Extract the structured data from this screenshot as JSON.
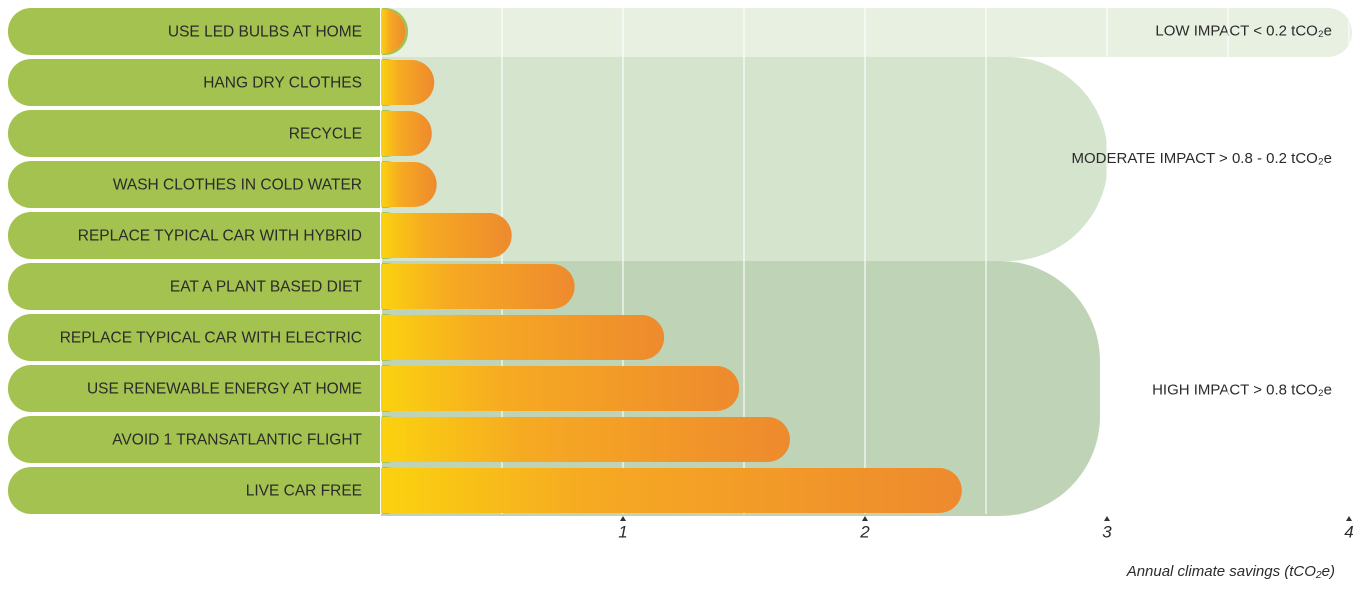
{
  "chart_data": {
    "type": "bar",
    "orientation": "horizontal",
    "categories": [
      "USE LED BULBS AT HOME",
      "HANG DRY CLOTHES",
      "RECYCLE",
      "WASH CLOTHES IN COLD WATER",
      "REPLACE TYPICAL CAR WITH HYBRID",
      "EAT A PLANT BASED DIET",
      "REPLACE TYPICAL CAR WITH ELECTRIC",
      "USE RENEWABLE ENERGY AT HOME",
      "AVOID 1 TRANSATLANTIC FLIGHT",
      "LIVE CAR FREE"
    ],
    "values": [
      0.1,
      0.22,
      0.21,
      0.23,
      0.54,
      0.8,
      1.17,
      1.48,
      1.69,
      2.4
    ],
    "color": "#f09a2a",
    "label_color": "#a3c24f",
    "x_label": "Annual climate savings (tCO₂e)",
    "xlim": [
      0,
      4
    ],
    "xticks": [
      1,
      2,
      3,
      4
    ],
    "minor_xticks": [
      0.5,
      1.5,
      2.5,
      3.5
    ],
    "grid": true,
    "zones": [
      {
        "label": "LOW IMPACT < 0.2 tCO₂e",
        "color": "#e8f0e2"
      },
      {
        "label": "MODERATE IMPACT  > 0.8 - 0.2 tCO₂e",
        "color": "#d5e4cd"
      },
      {
        "label": "HIGH IMPACT  > 0.8 tCO₂e",
        "color": "#bfd4b6"
      }
    ]
  }
}
